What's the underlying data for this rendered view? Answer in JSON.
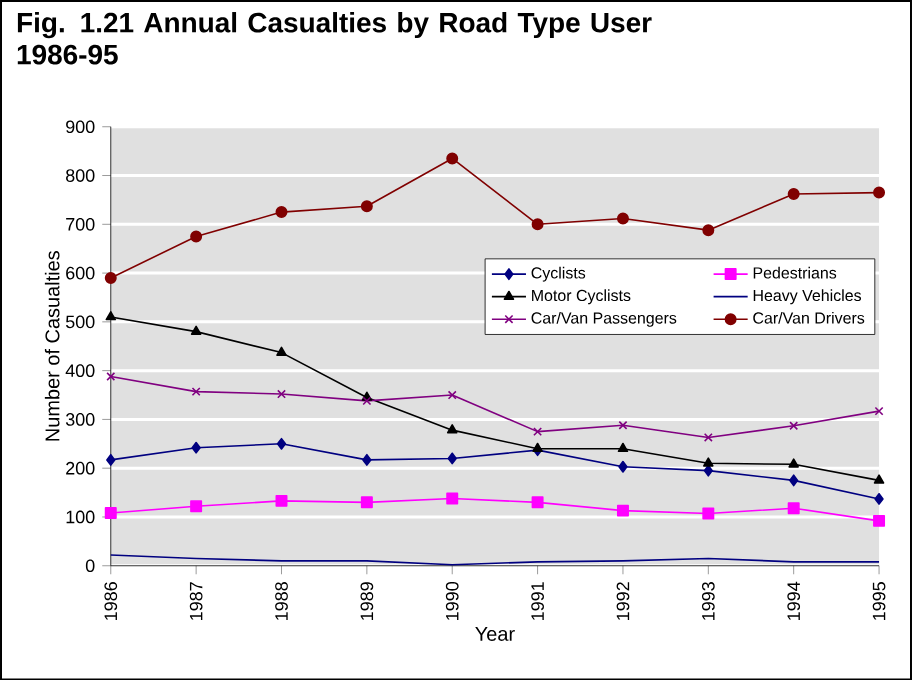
{
  "chart_data": {
    "type": "line",
    "title": "Fig. 1.21 Annual Casualties by Road Type User 1986-95",
    "xlabel": "Year",
    "ylabel": "Number of Casualties",
    "categories": [
      "1986",
      "1987",
      "1988",
      "1989",
      "1990",
      "1991",
      "1992",
      "1993",
      "1994",
      "1995"
    ],
    "series": [
      {
        "name": "Cyclists",
        "color": "#000080",
        "marker": "diamond",
        "values": [
          217,
          242,
          250,
          217,
          220,
          237,
          203,
          195,
          175,
          137
        ]
      },
      {
        "name": "Pedestrians",
        "color": "#ff00ff",
        "marker": "square",
        "values": [
          108,
          122,
          133,
          130,
          138,
          130,
          113,
          107,
          118,
          92
        ]
      },
      {
        "name": "Motor Cyclists",
        "color": "#000000",
        "marker": "triangle",
        "values": [
          510,
          480,
          437,
          345,
          278,
          240,
          240,
          210,
          208,
          175
        ]
      },
      {
        "name": "Heavy Vehicles",
        "color": "#000080",
        "marker": "none",
        "values": [
          22,
          15,
          10,
          10,
          2,
          8,
          10,
          15,
          8,
          8
        ]
      },
      {
        "name": "Car/Van Passengers",
        "color": "#800080",
        "marker": "cross",
        "values": [
          388,
          357,
          352,
          338,
          350,
          275,
          288,
          263,
          287,
          317
        ]
      },
      {
        "name": "Car/Van Drivers",
        "color": "#800000",
        "marker": "circle",
        "values": [
          590,
          675,
          725,
          737,
          835,
          700,
          712,
          688,
          762,
          765
        ]
      }
    ],
    "ylim": [
      0,
      900
    ],
    "yticks": [
      0,
      100,
      200,
      300,
      400,
      500,
      600,
      700,
      800,
      900
    ],
    "grid": "y",
    "legend": "right"
  }
}
